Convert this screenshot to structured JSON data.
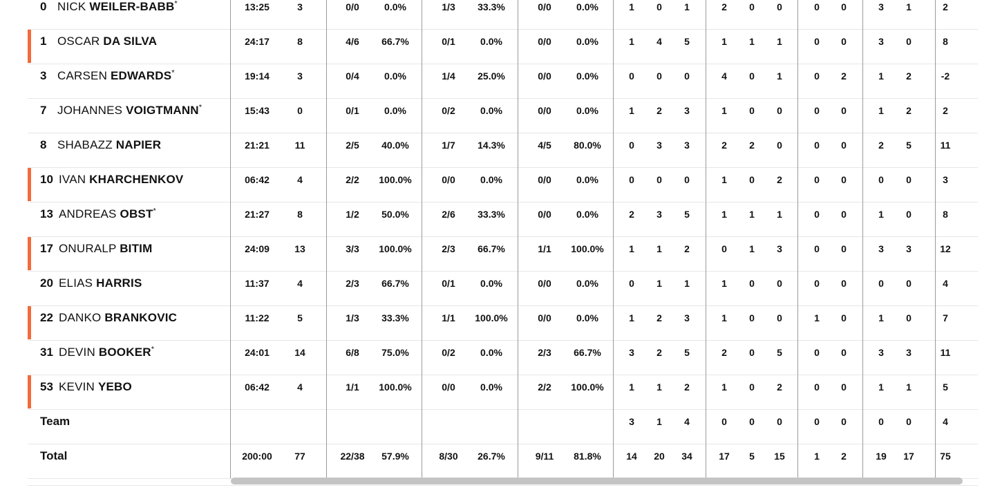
{
  "accent_color": "#f26b3a",
  "players": [
    {
      "number": "0",
      "first": "NICK",
      "last": "WEILER-BABB",
      "star": "*",
      "accent": false,
      "stats": [
        "13:25",
        "3",
        "0/0",
        "0.0%",
        "1/3",
        "33.3%",
        "0/0",
        "0.0%",
        "1",
        "0",
        "1",
        "2",
        "0",
        "0",
        "0",
        "0",
        "3",
        "1",
        "2"
      ]
    },
    {
      "number": "1",
      "first": "OSCAR",
      "last": "DA SILVA",
      "star": "",
      "accent": true,
      "stats": [
        "24:17",
        "8",
        "4/6",
        "66.7%",
        "0/1",
        "0.0%",
        "0/0",
        "0.0%",
        "1",
        "4",
        "5",
        "1",
        "1",
        "1",
        "0",
        "0",
        "3",
        "0",
        "8"
      ]
    },
    {
      "number": "3",
      "first": "CARSEN",
      "last": "EDWARDS",
      "star": "*",
      "accent": false,
      "stats": [
        "19:14",
        "3",
        "0/4",
        "0.0%",
        "1/4",
        "25.0%",
        "0/0",
        "0.0%",
        "0",
        "0",
        "0",
        "4",
        "0",
        "1",
        "0",
        "2",
        "1",
        "2",
        "-2"
      ]
    },
    {
      "number": "7",
      "first": "JOHANNES",
      "last": "VOIGTMANN",
      "star": "*",
      "accent": false,
      "stats": [
        "15:43",
        "0",
        "0/1",
        "0.0%",
        "0/2",
        "0.0%",
        "0/0",
        "0.0%",
        "1",
        "2",
        "3",
        "1",
        "0",
        "0",
        "0",
        "0",
        "1",
        "2",
        "2"
      ]
    },
    {
      "number": "8",
      "first": "SHABAZZ",
      "last": "NAPIER",
      "star": "",
      "accent": false,
      "stats": [
        "21:21",
        "11",
        "2/5",
        "40.0%",
        "1/7",
        "14.3%",
        "4/5",
        "80.0%",
        "0",
        "3",
        "3",
        "2",
        "2",
        "0",
        "0",
        "0",
        "2",
        "5",
        "11"
      ]
    },
    {
      "number": "10",
      "first": "IVAN",
      "last": "KHARCHENKOV",
      "star": "",
      "accent": true,
      "stats": [
        "06:42",
        "4",
        "2/2",
        "100.0%",
        "0/0",
        "0.0%",
        "0/0",
        "0.0%",
        "0",
        "0",
        "0",
        "1",
        "0",
        "2",
        "0",
        "0",
        "0",
        "0",
        "3"
      ]
    },
    {
      "number": "13",
      "first": "ANDREAS",
      "last": "OBST",
      "star": "*",
      "accent": false,
      "stats": [
        "21:27",
        "8",
        "1/2",
        "50.0%",
        "2/6",
        "33.3%",
        "0/0",
        "0.0%",
        "2",
        "3",
        "5",
        "1",
        "1",
        "1",
        "0",
        "0",
        "1",
        "0",
        "8"
      ]
    },
    {
      "number": "17",
      "first": "ONURALP",
      "last": "BITIM",
      "star": "",
      "accent": true,
      "stats": [
        "24:09",
        "13",
        "3/3",
        "100.0%",
        "2/3",
        "66.7%",
        "1/1",
        "100.0%",
        "1",
        "1",
        "2",
        "0",
        "1",
        "3",
        "0",
        "0",
        "3",
        "3",
        "12"
      ]
    },
    {
      "number": "20",
      "first": "ELIAS",
      "last": "HARRIS",
      "star": "",
      "accent": false,
      "stats": [
        "11:37",
        "4",
        "2/3",
        "66.7%",
        "0/1",
        "0.0%",
        "0/0",
        "0.0%",
        "0",
        "1",
        "1",
        "1",
        "0",
        "0",
        "0",
        "0",
        "0",
        "0",
        "4"
      ]
    },
    {
      "number": "22",
      "first": "DANKO",
      "last": "BRANKOVIC",
      "star": "",
      "accent": true,
      "stats": [
        "11:22",
        "5",
        "1/3",
        "33.3%",
        "1/1",
        "100.0%",
        "0/0",
        "0.0%",
        "1",
        "2",
        "3",
        "1",
        "0",
        "0",
        "1",
        "0",
        "1",
        "0",
        "7"
      ]
    },
    {
      "number": "31",
      "first": "DEVIN",
      "last": "BOOKER",
      "star": "*",
      "accent": false,
      "stats": [
        "24:01",
        "14",
        "6/8",
        "75.0%",
        "0/2",
        "0.0%",
        "2/3",
        "66.7%",
        "3",
        "2",
        "5",
        "2",
        "0",
        "5",
        "0",
        "0",
        "3",
        "3",
        "11"
      ]
    },
    {
      "number": "53",
      "first": "KEVIN",
      "last": "YEBO",
      "star": "",
      "accent": true,
      "stats": [
        "06:42",
        "4",
        "1/1",
        "100.0%",
        "0/0",
        "0.0%",
        "2/2",
        "100.0%",
        "1",
        "1",
        "2",
        "1",
        "0",
        "2",
        "0",
        "0",
        "1",
        "1",
        "5"
      ]
    }
  ],
  "team": {
    "label": "Team",
    "stats": [
      "",
      "",
      "",
      "",
      "",
      "",
      "",
      "",
      "3",
      "1",
      "4",
      "0",
      "0",
      "0",
      "0",
      "0",
      "0",
      "0",
      "4"
    ]
  },
  "total": {
    "label": "Total",
    "stats": [
      "200:00",
      "77",
      "22/38",
      "57.9%",
      "8/30",
      "26.7%",
      "9/11",
      "81.8%",
      "14",
      "20",
      "34",
      "17",
      "5",
      "15",
      "1",
      "2",
      "19",
      "17",
      "75"
    ]
  }
}
